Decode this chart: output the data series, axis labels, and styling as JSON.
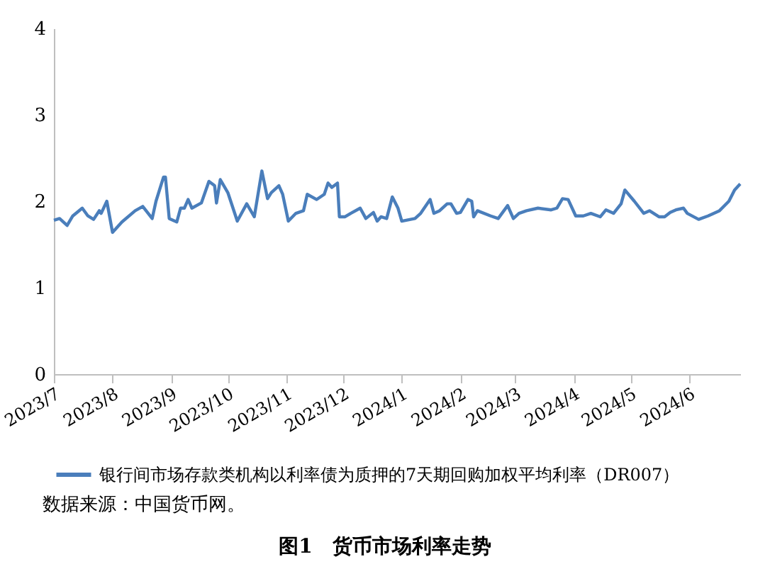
{
  "chart_data": {
    "type": "line",
    "title": "图1　货币市场利率走势",
    "annotations": [
      "数据来源：中国货币网。"
    ],
    "xlim": [
      "2023-07-01",
      "2024-06-28"
    ],
    "xticks": [
      {
        "value": "2023-07-01",
        "label": "2023/7"
      },
      {
        "value": "2023-08-01",
        "label": "2023/8"
      },
      {
        "value": "2023-09-01",
        "label": "2023/9"
      },
      {
        "value": "2023-10-01",
        "label": "2023/10"
      },
      {
        "value": "2023-11-01",
        "label": "2023/11"
      },
      {
        "value": "2023-12-01",
        "label": "2023/12"
      },
      {
        "value": "2024-01-01",
        "label": "2024/1"
      },
      {
        "value": "2024-02-01",
        "label": "2024/2"
      },
      {
        "value": "2024-03-01",
        "label": "2024/3"
      },
      {
        "value": "2024-04-01",
        "label": "2024/4"
      },
      {
        "value": "2024-05-01",
        "label": "2024/5"
      },
      {
        "value": "2024-06-01",
        "label": "2024/6"
      }
    ],
    "ylim": [
      0,
      4
    ],
    "yticks": [
      0,
      1,
      2,
      3,
      4
    ],
    "grid": false,
    "legend": "bottom",
    "x": [
      "2023-07-01",
      "2023-07-04",
      "2023-07-08",
      "2023-07-11",
      "2023-07-16",
      "2023-07-19",
      "2023-07-22",
      "2023-07-25",
      "2023-07-26",
      "2023-07-29",
      "2023-08-01",
      "2023-08-06",
      "2023-08-13",
      "2023-08-17",
      "2023-08-22",
      "2023-08-24",
      "2023-08-28",
      "2023-08-29",
      "2023-08-31",
      "2023-09-04",
      "2023-09-06",
      "2023-09-08",
      "2023-09-10",
      "2023-09-12",
      "2023-09-17",
      "2023-09-21",
      "2023-09-24",
      "2023-09-25",
      "2023-09-27",
      "2023-10-01",
      "2023-10-06",
      "2023-10-11",
      "2023-10-15",
      "2023-10-19",
      "2023-10-22",
      "2023-10-24",
      "2023-10-28",
      "2023-10-30",
      "2023-11-02",
      "2023-11-06",
      "2023-11-10",
      "2023-11-12",
      "2023-11-17",
      "2023-11-21",
      "2023-11-23",
      "2023-11-25",
      "2023-11-28",
      "2023-11-29",
      "2023-12-02",
      "2023-12-05",
      "2023-12-10",
      "2023-12-13",
      "2023-12-17",
      "2023-12-19",
      "2023-12-21",
      "2023-12-24",
      "2023-12-27",
      "2023-12-30",
      "2024-01-01",
      "2024-01-08",
      "2024-01-11",
      "2024-01-16",
      "2024-01-18",
      "2024-01-21",
      "2024-01-25",
      "2024-01-27",
      "2024-01-30",
      "2024-02-01",
      "2024-02-05",
      "2024-02-07",
      "2024-02-08",
      "2024-02-10",
      "2024-02-17",
      "2024-02-21",
      "2024-02-26",
      "2024-02-29",
      "2024-03-03",
      "2024-03-07",
      "2024-03-13",
      "2024-03-20",
      "2024-03-23",
      "2024-03-26",
      "2024-03-29",
      "2024-04-02",
      "2024-04-06",
      "2024-04-10",
      "2024-04-15",
      "2024-04-18",
      "2024-04-22",
      "2024-04-26",
      "2024-04-28",
      "2024-05-03",
      "2024-05-08",
      "2024-05-11",
      "2024-05-16",
      "2024-05-19",
      "2024-05-22",
      "2024-05-25",
      "2024-05-29",
      "2024-05-31",
      "2024-06-06",
      "2024-06-11",
      "2024-06-17",
      "2024-06-22",
      "2024-06-25",
      "2024-06-28"
    ],
    "series": [
      {
        "name": "银行间市场存款类机构以利率债为质押的7天期回购加权平均利率（DR007）",
        "color": "#4a7ebb",
        "values": [
          1.78,
          1.8,
          1.72,
          1.83,
          1.92,
          1.83,
          1.79,
          1.89,
          1.86,
          2.0,
          1.64,
          1.76,
          1.89,
          1.94,
          1.8,
          2.0,
          2.28,
          2.28,
          1.8,
          1.76,
          1.92,
          1.92,
          2.02,
          1.92,
          1.98,
          2.23,
          2.18,
          1.98,
          2.25,
          2.1,
          1.77,
          1.97,
          1.82,
          2.35,
          2.03,
          2.1,
          2.18,
          2.08,
          1.77,
          1.86,
          1.89,
          2.08,
          2.02,
          2.08,
          2.21,
          2.16,
          2.21,
          1.82,
          1.82,
          1.86,
          1.92,
          1.8,
          1.87,
          1.77,
          1.82,
          1.8,
          2.05,
          1.92,
          1.77,
          1.8,
          1.86,
          2.02,
          1.86,
          1.89,
          1.97,
          1.97,
          1.86,
          1.87,
          2.02,
          2.0,
          1.82,
          1.89,
          1.83,
          1.8,
          1.95,
          1.8,
          1.86,
          1.89,
          1.92,
          1.9,
          1.92,
          2.03,
          2.02,
          1.83,
          1.83,
          1.86,
          1.82,
          1.9,
          1.86,
          1.97,
          2.13,
          2.0,
          1.86,
          1.89,
          1.82,
          1.82,
          1.87,
          1.9,
          1.92,
          1.86,
          1.79,
          1.83,
          1.89,
          2.0,
          2.13,
          2.2
        ]
      }
    ]
  }
}
